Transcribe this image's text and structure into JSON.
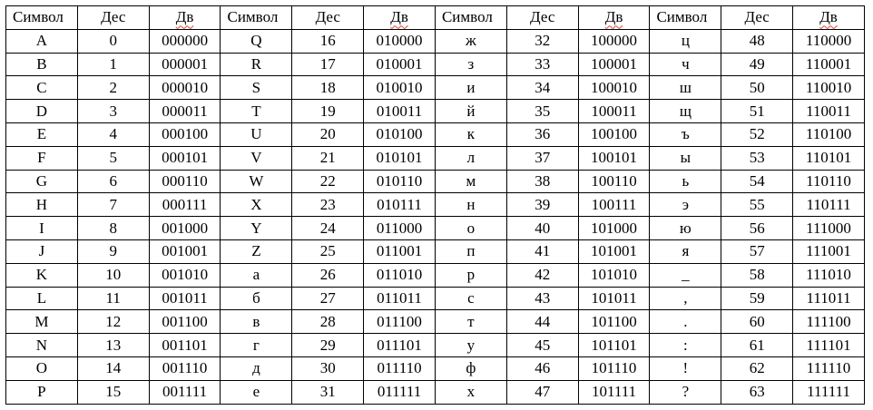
{
  "header": [
    {
      "symbol": "Символ",
      "dec": "Дес",
      "bin": "Дв"
    },
    {
      "symbol": "Символ",
      "dec": "Дес",
      "bin": "Дв"
    },
    {
      "symbol": "Символ",
      "dec": "Дес",
      "bin": "Дв"
    },
    {
      "symbol": "Символ",
      "dec": "Дес",
      "bin": "Дв"
    }
  ],
  "rows": [
    [
      [
        "A",
        "0",
        "000000"
      ],
      [
        "Q",
        "16",
        "010000"
      ],
      [
        "ж",
        "32",
        "100000"
      ],
      [
        "ц",
        "48",
        "110000"
      ]
    ],
    [
      [
        "B",
        "1",
        "000001"
      ],
      [
        "R",
        "17",
        "010001"
      ],
      [
        "з",
        "33",
        "100001"
      ],
      [
        "ч",
        "49",
        "110001"
      ]
    ],
    [
      [
        "C",
        "2",
        "000010"
      ],
      [
        "S",
        "18",
        "010010"
      ],
      [
        "и",
        "34",
        "100010"
      ],
      [
        "ш",
        "50",
        "110010"
      ]
    ],
    [
      [
        "D",
        "3",
        "000011"
      ],
      [
        "T",
        "19",
        "010011"
      ],
      [
        "й",
        "35",
        "100011"
      ],
      [
        "щ",
        "51",
        "110011"
      ]
    ],
    [
      [
        "E",
        "4",
        "000100"
      ],
      [
        "U",
        "20",
        "010100"
      ],
      [
        "к",
        "36",
        "100100"
      ],
      [
        "ъ",
        "52",
        "110100"
      ]
    ],
    [
      [
        "F",
        "5",
        "000101"
      ],
      [
        "V",
        "21",
        "010101"
      ],
      [
        "л",
        "37",
        "100101"
      ],
      [
        "ы",
        "53",
        "110101"
      ]
    ],
    [
      [
        "G",
        "6",
        "000110"
      ],
      [
        "W",
        "22",
        "010110"
      ],
      [
        "м",
        "38",
        "100110"
      ],
      [
        "ь",
        "54",
        "110110"
      ]
    ],
    [
      [
        "H",
        "7",
        "000111"
      ],
      [
        "X",
        "23",
        "010111"
      ],
      [
        "н",
        "39",
        "100111"
      ],
      [
        "э",
        "55",
        "110111"
      ]
    ],
    [
      [
        "I",
        "8",
        "001000"
      ],
      [
        "Y",
        "24",
        "011000"
      ],
      [
        "о",
        "40",
        "101000"
      ],
      [
        "ю",
        "56",
        "111000"
      ]
    ],
    [
      [
        "J",
        "9",
        "001001"
      ],
      [
        "Z",
        "25",
        "011001"
      ],
      [
        "п",
        "41",
        "101001"
      ],
      [
        "я",
        "57",
        "111001"
      ]
    ],
    [
      [
        "K",
        "10",
        "001010"
      ],
      [
        "а",
        "26",
        "011010"
      ],
      [
        "р",
        "42",
        "101010"
      ],
      [
        "_",
        "58",
        "111010"
      ]
    ],
    [
      [
        "L",
        "11",
        "001011"
      ],
      [
        "б",
        "27",
        "011011"
      ],
      [
        "с",
        "43",
        "101011"
      ],
      [
        ",",
        "59",
        "111011"
      ]
    ],
    [
      [
        "M",
        "12",
        "001100"
      ],
      [
        "в",
        "28",
        "011100"
      ],
      [
        "т",
        "44",
        "101100"
      ],
      [
        ".",
        "60",
        "111100"
      ]
    ],
    [
      [
        "N",
        "13",
        "001101"
      ],
      [
        "г",
        "29",
        "011101"
      ],
      [
        "у",
        "45",
        "101101"
      ],
      [
        ":",
        "61",
        "111101"
      ]
    ],
    [
      [
        "O",
        "14",
        "001110"
      ],
      [
        "д",
        "30",
        "011110"
      ],
      [
        "ф",
        "46",
        "101110"
      ],
      [
        "!",
        "62",
        "111110"
      ]
    ],
    [
      [
        "P",
        "15",
        "001111"
      ],
      [
        "е",
        "31",
        "011111"
      ],
      [
        "х",
        "47",
        "101111"
      ],
      [
        "?",
        "63",
        "111111"
      ]
    ]
  ]
}
